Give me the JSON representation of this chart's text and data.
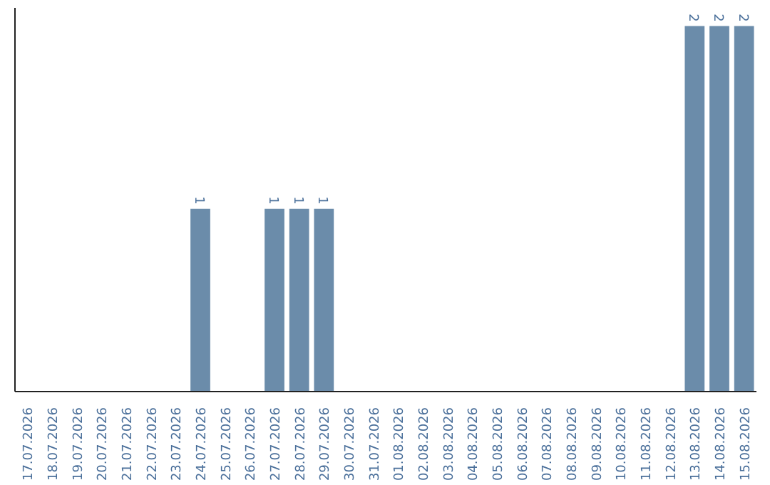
{
  "chart_data": {
    "type": "bar",
    "categories": [
      "17.07.2026",
      "18.07.2026",
      "19.07.2026",
      "20.07.2026",
      "21.07.2026",
      "22.07.2026",
      "23.07.2026",
      "24.07.2026",
      "25.07.2026",
      "26.07.2026",
      "27.07.2026",
      "28.07.2026",
      "29.07.2026",
      "30.07.2026",
      "31.07.2026",
      "01.08.2026",
      "02.08.2026",
      "03.08.2026",
      "04.08.2026",
      "05.08.2026",
      "06.08.2026",
      "07.08.2026",
      "08.08.2026",
      "09.08.2026",
      "10.08.2026",
      "11.08.2026",
      "12.08.2026",
      "13.08.2026",
      "14.08.2026",
      "15.08.2026"
    ],
    "values": [
      0,
      0,
      0,
      0,
      0,
      0,
      0,
      1,
      0,
      0,
      1,
      1,
      1,
      0,
      0,
      0,
      0,
      0,
      0,
      0,
      0,
      0,
      0,
      0,
      0,
      0,
      0,
      2,
      2,
      2
    ],
    "value_labels": [
      null,
      null,
      null,
      null,
      null,
      null,
      null,
      "1",
      null,
      null,
      "1",
      "1",
      "1",
      null,
      null,
      null,
      null,
      null,
      null,
      null,
      null,
      null,
      null,
      null,
      null,
      null,
      null,
      "2",
      "2",
      "2"
    ],
    "color": "#6b8caa",
    "grid": false
  }
}
